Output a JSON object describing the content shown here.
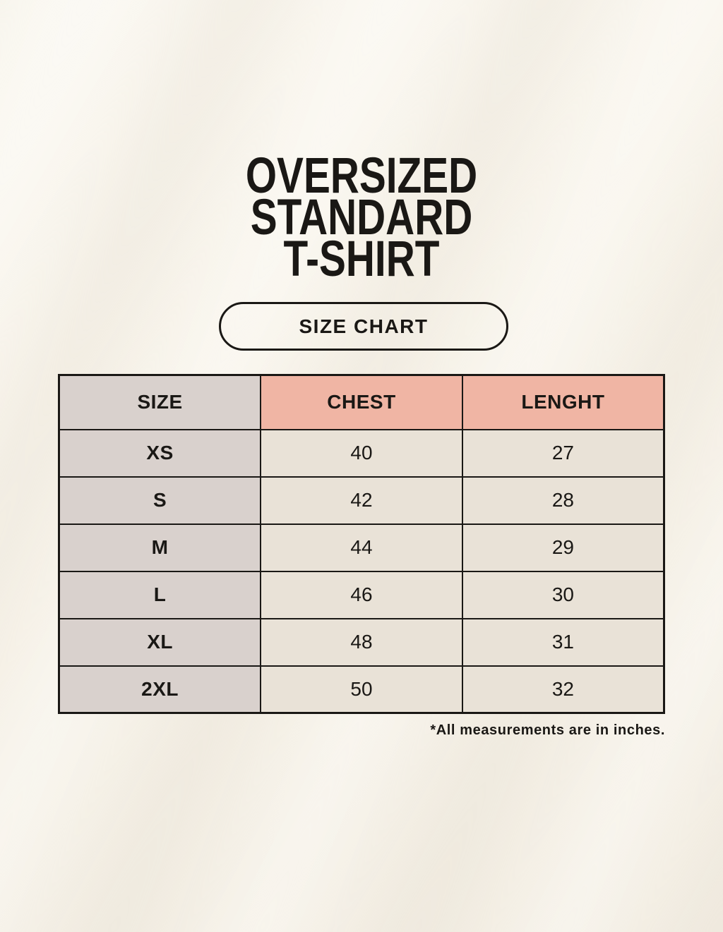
{
  "header": {
    "title_lines": [
      "OVERSIZED",
      "STANDARD",
      "T-SHIRT"
    ],
    "badge_label": "SIZE CHART"
  },
  "footnote": "*All measurements are in inches.",
  "colors": {
    "background": "#f8f4eb",
    "accent_header": "#f0b5a4",
    "size_column": "#d9d1cd",
    "cell": "#e9e2d7",
    "border": "#1a1815",
    "text": "#1a1815"
  },
  "chart_data": {
    "type": "table",
    "title": "SIZE CHART",
    "columns": [
      "SIZE",
      "CHEST",
      "LENGHT"
    ],
    "rows": [
      {
        "size": "XS",
        "chest": 40,
        "lenght": 27
      },
      {
        "size": "S",
        "chest": 42,
        "lenght": 28
      },
      {
        "size": "M",
        "chest": 44,
        "lenght": 29
      },
      {
        "size": "L",
        "chest": 46,
        "lenght": 30
      },
      {
        "size": "XL",
        "chest": 48,
        "lenght": 31
      },
      {
        "size": "2XL",
        "chest": 50,
        "lenght": 32
      }
    ],
    "units_note": "*All measurements are in inches."
  }
}
